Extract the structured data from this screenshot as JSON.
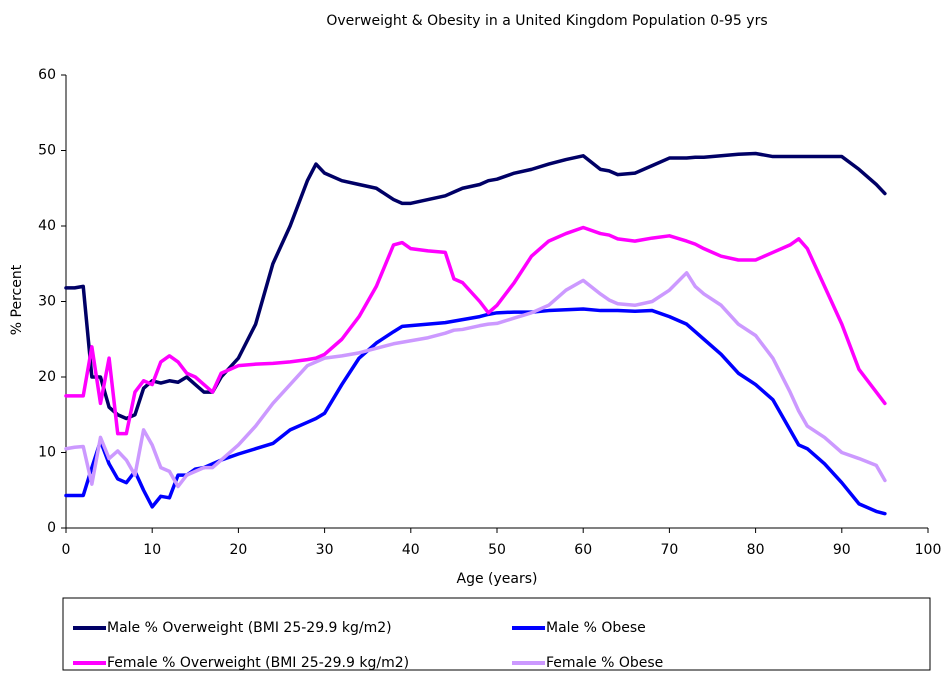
{
  "chart_data": {
    "type": "line",
    "title": "Overweight & Obesity in a United Kingdom Population 0-95 yrs",
    "x_label": "Age (years)",
    "y_label": "% Percent",
    "xlim": [
      0,
      100
    ],
    "xticks": [
      0,
      10,
      20,
      30,
      40,
      50,
      60,
      70,
      80,
      90,
      100
    ],
    "ylim": [
      0,
      60
    ],
    "yticks": [
      0,
      10,
      20,
      30,
      40,
      50,
      60
    ],
    "grid": false,
    "legend": "bottom",
    "x": [
      0,
      1,
      2,
      3,
      4,
      5,
      6,
      7,
      8,
      9,
      10,
      11,
      12,
      13,
      14,
      15,
      16,
      17,
      18,
      20,
      22,
      24,
      26,
      28,
      29,
      30,
      32,
      34,
      36,
      38,
      39,
      40,
      42,
      44,
      45,
      46,
      48,
      49,
      50,
      52,
      54,
      56,
      58,
      60,
      62,
      63,
      64,
      66,
      68,
      70,
      72,
      73,
      74,
      76,
      78,
      80,
      82,
      84,
      85,
      86,
      88,
      90,
      92,
      94,
      95
    ],
    "series": [
      {
        "name": "Male % Overweight (BMI 25-29.9 kg/m2)",
        "color": "#000066",
        "values": [
          31.8,
          31.8,
          32,
          20,
          20,
          16,
          15,
          14.5,
          15,
          18.5,
          19.5,
          19.2,
          19.5,
          19.3,
          20,
          19,
          18,
          18,
          20,
          22.5,
          27,
          35,
          40,
          46,
          48.2,
          47,
          46,
          45.5,
          45,
          43.5,
          43,
          43,
          43.5,
          44,
          44.5,
          45,
          45.5,
          46,
          46.2,
          47,
          47.5,
          48.2,
          48.8,
          49.3,
          47.5,
          47.3,
          46.8,
          47,
          48,
          49,
          49,
          49.1,
          49.1,
          49.3,
          49.5,
          49.6,
          49.2,
          49.2,
          49.2,
          49.2,
          49.2,
          49.2,
          47.5,
          45.5,
          44.3
        ]
      },
      {
        "name": "Male % Obese",
        "color": "#0000ff",
        "values": [
          4.3,
          4.3,
          4.3,
          8,
          11.5,
          8.5,
          6.5,
          6,
          7.5,
          5,
          2.8,
          4.2,
          4,
          7,
          7,
          7.8,
          8,
          8.5,
          9,
          9.8,
          10.5,
          11.2,
          13,
          14,
          14.5,
          15.2,
          19,
          22.5,
          24.5,
          26,
          26.7,
          26.8,
          27,
          27.2,
          27.4,
          27.6,
          28,
          28.3,
          28.5,
          28.6,
          28.6,
          28.8,
          28.9,
          29,
          28.8,
          28.8,
          28.8,
          28.7,
          28.8,
          28,
          27,
          26,
          25,
          23,
          20.5,
          19,
          17,
          13,
          11,
          10.5,
          8.5,
          6,
          3.2,
          2.2,
          1.9
        ]
      },
      {
        "name": "Female % Overweight (BMI 25-29.9 kg/m2)",
        "color": "#ff00ff",
        "values": [
          17.5,
          17.5,
          17.5,
          24,
          16.5,
          22.5,
          12.5,
          12.5,
          18,
          19.5,
          19,
          22,
          22.8,
          22,
          20.5,
          20,
          19,
          18,
          20.5,
          21.5,
          21.7,
          21.8,
          22,
          22.3,
          22.5,
          23,
          25,
          28,
          32,
          37.5,
          37.8,
          37,
          36.7,
          36.5,
          33,
          32.5,
          30,
          28.5,
          29.5,
          32.5,
          36,
          38,
          39,
          39.8,
          39,
          38.8,
          38.3,
          38,
          38.4,
          38.7,
          38,
          37.6,
          37,
          36,
          35.5,
          35.5,
          36.5,
          37.5,
          38.3,
          37,
          32,
          27,
          21,
          18,
          16.5
        ]
      },
      {
        "name": "Female % Obese",
        "color": "#cc99ff",
        "values": [
          10.5,
          10.7,
          10.8,
          5.8,
          12,
          9.2,
          10.2,
          9,
          7,
          13,
          11,
          8,
          7.5,
          5.5,
          7,
          7.5,
          8,
          8,
          9,
          11,
          13.5,
          16.5,
          19,
          21.5,
          22,
          22.5,
          22.8,
          23.2,
          23.8,
          24.4,
          24.6,
          24.8,
          25.2,
          25.8,
          26.2,
          26.3,
          26.8,
          27,
          27.1,
          27.8,
          28.5,
          29.5,
          31.5,
          32.8,
          31,
          30.2,
          29.7,
          29.5,
          30,
          31.5,
          33.8,
          32,
          31,
          29.5,
          27,
          25.5,
          22.5,
          18,
          15.5,
          13.5,
          12,
          10,
          9.2,
          8.3,
          6.3
        ]
      }
    ]
  }
}
